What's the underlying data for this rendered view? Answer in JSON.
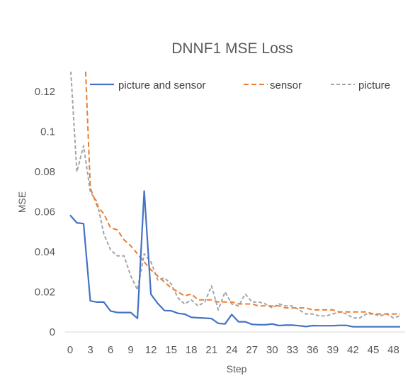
{
  "chart_data": {
    "type": "line",
    "title": "DNNF1 MSE Loss",
    "xlabel": "Step",
    "ylabel": "MSE",
    "ylim": [
      0,
      0.13
    ],
    "xlim": [
      0,
      49
    ],
    "y_ticks": [
      "0",
      "0.02",
      "0.04",
      "0.06",
      "0.08",
      "0.1",
      "0.12"
    ],
    "y_tick_values": [
      0,
      0.02,
      0.04,
      0.06,
      0.08,
      0.1,
      0.12
    ],
    "x_ticks": [
      "0",
      "3",
      "6",
      "9",
      "12",
      "15",
      "18",
      "21",
      "24",
      "27",
      "30",
      "33",
      "36",
      "39",
      "42",
      "45",
      "48"
    ],
    "x_tick_values": [
      0,
      3,
      6,
      9,
      12,
      15,
      18,
      21,
      24,
      27,
      30,
      33,
      36,
      39,
      42,
      45,
      48
    ],
    "grid": false,
    "legend_position": "top",
    "series": [
      {
        "name": "picture and sensor",
        "color": "#4472c4",
        "style": "solid",
        "x": [
          0,
          1,
          2,
          3,
          4,
          5,
          6,
          7,
          8,
          9,
          10,
          11,
          12,
          13,
          14,
          15,
          16,
          17,
          18,
          19,
          20,
          21,
          22,
          23,
          24,
          25,
          26,
          27,
          28,
          29,
          30,
          31,
          32,
          33,
          34,
          35,
          36,
          37,
          38,
          39,
          40,
          41,
          42,
          43,
          44,
          45,
          46,
          47,
          48,
          49
        ],
        "values": [
          0.0583,
          0.0545,
          0.0541,
          0.0155,
          0.0149,
          0.0149,
          0.0105,
          0.0097,
          0.0097,
          0.0097,
          0.0068,
          0.0704,
          0.0188,
          0.0143,
          0.0107,
          0.0106,
          0.0093,
          0.0089,
          0.0073,
          0.0071,
          0.0069,
          0.0067,
          0.0043,
          0.004,
          0.0087,
          0.0051,
          0.0051,
          0.0038,
          0.0036,
          0.0036,
          0.004,
          0.0032,
          0.0034,
          0.0034,
          0.0031,
          0.0027,
          0.0032,
          0.0031,
          0.0031,
          0.0031,
          0.0033,
          0.0033,
          0.0026,
          0.0026,
          0.0026,
          0.0026,
          0.0026,
          0.0026,
          0.0026,
          0.0026
        ]
      },
      {
        "name": "sensor",
        "color": "#ed7d31",
        "style": "dashed",
        "x": [
          2.3,
          3,
          4,
          5,
          6,
          7,
          8,
          9,
          10,
          11,
          12,
          13,
          14,
          15,
          16,
          17,
          18,
          19,
          20,
          21,
          22,
          23,
          24,
          25,
          26,
          27,
          28,
          29,
          30,
          31,
          32,
          33,
          34,
          35,
          36,
          37,
          38,
          39,
          40,
          41,
          42,
          43,
          44,
          45,
          46,
          47,
          48,
          49
        ],
        "values": [
          0.13,
          0.072,
          0.063,
          0.059,
          0.052,
          0.051,
          0.046,
          0.043,
          0.039,
          0.035,
          0.031,
          0.028,
          0.025,
          0.022,
          0.02,
          0.018,
          0.019,
          0.016,
          0.016,
          0.016,
          0.015,
          0.015,
          0.015,
          0.014,
          0.014,
          0.014,
          0.013,
          0.013,
          0.013,
          0.013,
          0.012,
          0.012,
          0.012,
          0.012,
          0.011,
          0.011,
          0.011,
          0.011,
          0.01,
          0.01,
          0.01,
          0.01,
          0.01,
          0.009,
          0.009,
          0.009,
          0.009,
          0.009
        ]
      },
      {
        "name": "picture",
        "color": "#a5a5a5",
        "style": "dashed",
        "x": [
          0.1,
          1,
          2,
          3,
          4,
          5,
          6,
          7,
          8,
          9,
          10,
          11,
          12,
          13,
          14,
          15,
          16,
          17,
          18,
          19,
          20,
          21,
          22,
          23,
          24,
          25,
          26,
          27,
          28,
          29,
          30,
          31,
          32,
          33,
          34,
          35,
          36,
          37,
          38,
          39,
          40,
          41,
          42,
          43,
          44,
          45,
          46,
          47,
          48,
          49
        ],
        "values": [
          0.13,
          0.08,
          0.093,
          0.07,
          0.065,
          0.049,
          0.041,
          0.038,
          0.038,
          0.028,
          0.021,
          0.039,
          0.035,
          0.026,
          0.027,
          0.024,
          0.017,
          0.014,
          0.016,
          0.013,
          0.015,
          0.023,
          0.011,
          0.02,
          0.014,
          0.013,
          0.019,
          0.015,
          0.015,
          0.014,
          0.012,
          0.014,
          0.013,
          0.013,
          0.011,
          0.009,
          0.009,
          0.008,
          0.008,
          0.009,
          0.01,
          0.009,
          0.007,
          0.007,
          0.009,
          0.009,
          0.008,
          0.009,
          0.007,
          0.008
        ]
      }
    ]
  }
}
